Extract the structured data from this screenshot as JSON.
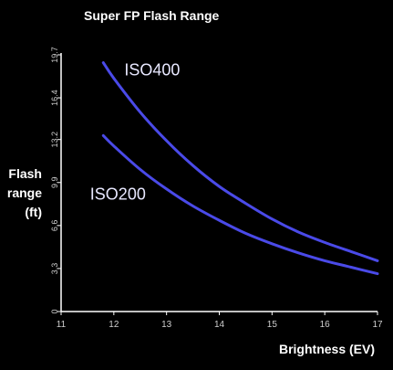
{
  "chart_data": {
    "type": "line",
    "title": "Super FP Flash Range",
    "xlabel": "Brightness (EV)",
    "ylabel_lines": [
      "Flash",
      "range",
      "(ft)"
    ],
    "xlim": [
      11,
      17
    ],
    "ylim": [
      0,
      19.7
    ],
    "x_ticks": [
      11,
      12,
      13,
      14,
      15,
      16,
      17
    ],
    "y_ticks": [
      0,
      3.3,
      6.6,
      9.9,
      13.2,
      16.4,
      19.7
    ],
    "grid": false,
    "series": [
      {
        "name": "ISO400",
        "color": "#4a4ae8",
        "x": [
          11.8,
          12.0,
          12.5,
          13.0,
          13.5,
          14.0,
          14.5,
          15.0,
          15.5,
          16.0,
          16.5,
          17.0
        ],
        "y": [
          19.1,
          17.9,
          15.3,
          13.1,
          11.2,
          9.6,
          8.3,
          7.1,
          6.1,
          5.3,
          4.6,
          3.9
        ]
      },
      {
        "name": "ISO200",
        "color": "#4a4ae8",
        "x": [
          11.8,
          12.0,
          12.5,
          13.0,
          13.5,
          14.0,
          14.5,
          15.0,
          15.5,
          16.0,
          16.5,
          17.0
        ],
        "y": [
          13.5,
          12.7,
          10.9,
          9.4,
          8.1,
          7.0,
          6.0,
          5.2,
          4.5,
          3.9,
          3.4,
          2.9
        ]
      }
    ]
  }
}
